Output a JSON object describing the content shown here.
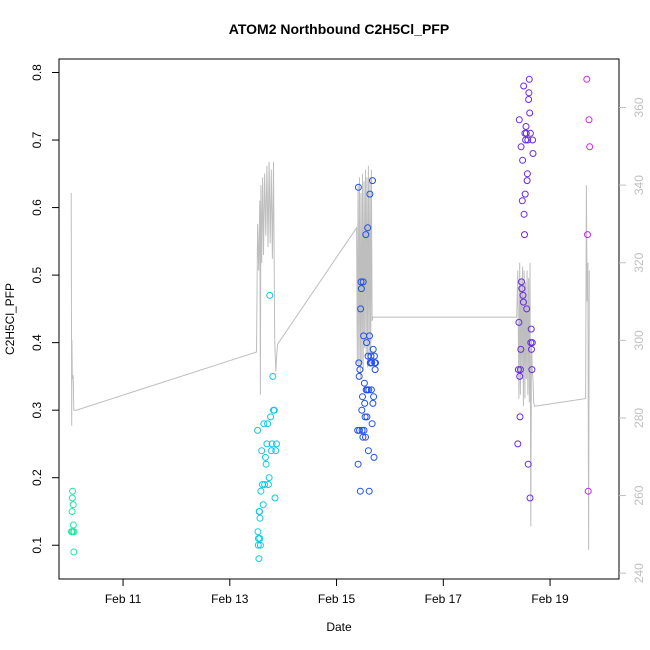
{
  "chart_data": {
    "type": "scatter",
    "title": "ATOM2 Northbound C2H5Cl_PFP",
    "xlabel": "Date",
    "ylabel": "C2H5Cl_PFP",
    "xlim": [
      "2016-02-09T19:12",
      "2016-02-20T07:00"
    ],
    "ylim": [
      0.05,
      0.82
    ],
    "x_ticks": [
      {
        "label": "Feb 11",
        "date": "2016-02-11"
      },
      {
        "label": "Feb 13",
        "date": "2016-02-13"
      },
      {
        "label": "Feb 15",
        "date": "2016-02-15"
      },
      {
        "label": "Feb 17",
        "date": "2016-02-17"
      },
      {
        "label": "Feb 19",
        "date": "2016-02-19"
      }
    ],
    "y_ticks": [
      "0.1",
      "0.2",
      "0.3",
      "0.4",
      "0.5",
      "0.6",
      "0.7",
      "0.8"
    ],
    "y2_ticks": [
      "240",
      "260",
      "280",
      "300",
      "320",
      "340",
      "360"
    ],
    "y2lim": [
      238.5,
      372.5
    ],
    "grid": false,
    "legend": "none",
    "colors": {
      "flight1": "#1ee7a0",
      "flight2": "#10c8e6",
      "flight3": "#2050e8",
      "flight4": "#6a2ae6",
      "flight5": "#c02ae6",
      "line": "#bebebe"
    },
    "series": [
      {
        "color_key": "flight1",
        "x": [
          "2016-02-10T00:48",
          "2016-02-10T00:55",
          "2016-02-10T01:05",
          "2016-02-10T01:12",
          "2016-02-10T01:20",
          "2016-02-10T01:25",
          "2016-02-10T01:35",
          "2016-02-10T01:40",
          "2016-02-10T01:50",
          "2016-02-10T02:00"
        ],
        "y": [
          0.12,
          0.12,
          0.15,
          0.17,
          0.18,
          0.12,
          0.16,
          0.13,
          0.09,
          0.12
        ]
      },
      {
        "color_key": "flight2",
        "x": [
          "2016-02-13T12:30",
          "2016-02-13T12:40",
          "2016-02-13T12:48",
          "2016-02-13T12:55",
          "2016-02-13T13:05",
          "2016-02-13T13:12",
          "2016-02-13T13:20",
          "2016-02-13T13:28",
          "2016-02-13T13:35",
          "2016-02-13T13:45",
          "2016-02-13T14:00",
          "2016-02-13T14:20",
          "2016-02-13T14:40",
          "2016-02-13T15:00",
          "2016-02-13T15:20",
          "2016-02-13T15:40",
          "2016-02-13T16:00",
          "2016-02-13T16:20",
          "2016-02-13T16:40",
          "2016-02-13T17:00",
          "2016-02-13T17:20",
          "2016-02-13T17:40",
          "2016-02-13T18:00",
          "2016-02-13T18:20",
          "2016-02-13T18:40",
          "2016-02-13T19:00",
          "2016-02-13T19:20",
          "2016-02-13T19:40",
          "2016-02-13T20:00",
          "2016-02-13T20:20",
          "2016-02-13T20:40",
          "2016-02-13T21:00"
        ],
        "y": [
          0.27,
          0.12,
          0.1,
          0.11,
          0.08,
          0.15,
          0.15,
          0.11,
          0.14,
          0.1,
          0.18,
          0.24,
          0.19,
          0.16,
          0.28,
          0.19,
          0.23,
          0.22,
          0.25,
          0.28,
          0.19,
          0.2,
          0.47,
          0.29,
          0.24,
          0.25,
          0.35,
          0.3,
          0.3,
          0.17,
          0.24,
          0.25
        ]
      },
      {
        "color_key": "flight3",
        "x": [
          "2016-02-15T09:30",
          "2016-02-15T09:40",
          "2016-02-15T09:50",
          "2016-02-15T10:00",
          "2016-02-15T10:10",
          "2016-02-15T10:20",
          "2016-02-15T10:30",
          "2016-02-15T10:40",
          "2016-02-15T10:50",
          "2016-02-15T11:00",
          "2016-02-15T11:10",
          "2016-02-15T11:20",
          "2016-02-15T11:30",
          "2016-02-15T11:40",
          "2016-02-15T11:50",
          "2016-02-15T12:00",
          "2016-02-15T12:10",
          "2016-02-15T12:20",
          "2016-02-15T12:30",
          "2016-02-15T12:40",
          "2016-02-15T12:50",
          "2016-02-15T13:00",
          "2016-02-15T13:10",
          "2016-02-15T13:20",
          "2016-02-15T13:30",
          "2016-02-15T13:40",
          "2016-02-15T13:50",
          "2016-02-15T14:00",
          "2016-02-15T14:10",
          "2016-02-15T14:20",
          "2016-02-15T14:30",
          "2016-02-15T14:40",
          "2016-02-15T14:50",
          "2016-02-15T15:00",
          "2016-02-15T15:10",
          "2016-02-15T15:20",
          "2016-02-15T15:30",
          "2016-02-15T15:40",
          "2016-02-15T15:50",
          "2016-02-15T16:00",
          "2016-02-15T16:10",
          "2016-02-15T16:20",
          "2016-02-15T16:30",
          "2016-02-15T16:40",
          "2016-02-15T16:50",
          "2016-02-15T17:00",
          "2016-02-15T17:10",
          "2016-02-15T17:20",
          "2016-02-15T17:30"
        ],
        "y": [
          0.27,
          0.22,
          0.63,
          0.37,
          0.35,
          0.27,
          0.36,
          0.18,
          0.45,
          0.49,
          0.48,
          0.3,
          0.27,
          0.32,
          0.26,
          0.49,
          0.41,
          0.27,
          0.34,
          0.31,
          0.29,
          0.26,
          0.56,
          0.33,
          0.4,
          0.29,
          0.33,
          0.57,
          0.38,
          0.24,
          0.33,
          0.18,
          0.41,
          0.62,
          0.37,
          0.37,
          0.38,
          0.33,
          0.37,
          0.28,
          0.64,
          0.31,
          0.39,
          0.32,
          0.23,
          0.38,
          0.37,
          0.36,
          0.37
        ]
      },
      {
        "color_key": "flight4",
        "x": [
          "2016-02-18T09:30",
          "2016-02-18T09:45",
          "2016-02-18T10:00",
          "2016-02-18T10:10",
          "2016-02-18T10:20",
          "2016-02-18T10:30",
          "2016-02-18T10:40",
          "2016-02-18T10:50",
          "2016-02-18T11:00",
          "2016-02-18T11:10",
          "2016-02-18T11:20",
          "2016-02-18T11:30",
          "2016-02-18T11:40",
          "2016-02-18T11:50",
          "2016-02-18T12:00",
          "2016-02-18T12:10",
          "2016-02-18T12:20",
          "2016-02-18T12:30",
          "2016-02-18T12:40",
          "2016-02-18T12:50",
          "2016-02-18T13:00",
          "2016-02-18T13:10",
          "2016-02-18T13:20",
          "2016-02-18T13:30",
          "2016-02-18T13:40",
          "2016-02-18T13:50",
          "2016-02-18T14:00",
          "2016-02-18T14:10",
          "2016-02-18T14:20",
          "2016-02-18T14:30",
          "2016-02-18T14:40",
          "2016-02-18T14:50",
          "2016-02-18T15:00",
          "2016-02-18T15:10",
          "2016-02-18T15:20",
          "2016-02-18T15:30",
          "2016-02-18T15:40",
          "2016-02-18T15:50",
          "2016-02-18T16:00",
          "2016-02-18T16:10",
          "2016-02-18T16:20"
        ],
        "y": [
          0.25,
          0.36,
          0.43,
          0.73,
          0.35,
          0.29,
          0.36,
          0.39,
          0.69,
          0.49,
          0.48,
          0.61,
          0.67,
          0.47,
          0.46,
          0.78,
          0.59,
          0.56,
          0.71,
          0.62,
          0.7,
          0.72,
          0.71,
          0.45,
          0.64,
          0.65,
          0.7,
          0.22,
          0.76,
          0.77,
          0.79,
          0.74,
          0.17,
          0.71,
          0.4,
          0.42,
          0.39,
          0.36,
          0.4,
          0.7,
          0.68
        ]
      },
      {
        "color_key": "flight5",
        "x": [
          "2016-02-19T16:30",
          "2016-02-19T16:50",
          "2016-02-19T17:10",
          "2016-02-19T17:30",
          "2016-02-19T17:50"
        ],
        "y": [
          0.79,
          0.56,
          0.18,
          0.73,
          0.69
        ]
      }
    ],
    "line_series": {
      "axis": "right",
      "x": [
        "2016-02-10T00:40",
        "2016-02-10T00:55",
        "2016-02-10T01:00",
        "2016-02-10T01:10",
        "2016-02-10T01:20",
        "2016-02-10T01:35",
        "2016-02-10T01:50",
        "2016-02-10T03:00",
        "2016-02-13T12:00",
        "2016-02-13T12:30",
        "2016-02-13T13:00",
        "2016-02-13T13:30",
        "2016-02-13T13:45",
        "2016-02-13T14:00",
        "2016-02-13T14:20",
        "2016-02-13T14:45",
        "2016-02-13T15:10",
        "2016-02-13T15:40",
        "2016-02-13T16:10",
        "2016-02-13T16:40",
        "2016-02-13T17:10",
        "2016-02-13T17:40",
        "2016-02-13T18:10",
        "2016-02-13T18:40",
        "2016-02-13T19:10",
        "2016-02-13T19:40",
        "2016-02-13T20:10",
        "2016-02-13T20:40",
        "2016-02-13T21:10",
        "2016-02-13T21:30",
        "2016-02-15T09:00",
        "2016-02-15T09:20",
        "2016-02-15T09:40",
        "2016-02-15T10:00",
        "2016-02-15T10:20",
        "2016-02-15T10:40",
        "2016-02-15T11:00",
        "2016-02-15T11:20",
        "2016-02-15T11:40",
        "2016-02-15T12:00",
        "2016-02-15T12:20",
        "2016-02-15T12:40",
        "2016-02-15T13:00",
        "2016-02-15T13:20",
        "2016-02-15T13:40",
        "2016-02-15T14:00",
        "2016-02-15T14:20",
        "2016-02-15T14:40",
        "2016-02-15T15:00",
        "2016-02-15T15:20",
        "2016-02-15T15:40",
        "2016-02-15T16:00",
        "2016-02-15T16:20",
        "2016-02-15T16:40",
        "2016-02-15T17:00",
        "2016-02-15T17:20",
        "2016-02-15T17:40",
        "2016-02-15T18:00",
        "2016-02-18T09:00",
        "2016-02-18T09:30",
        "2016-02-18T10:00",
        "2016-02-18T10:20",
        "2016-02-18T10:40",
        "2016-02-18T11:00",
        "2016-02-18T11:20",
        "2016-02-18T11:40",
        "2016-02-18T12:00",
        "2016-02-18T12:20",
        "2016-02-18T12:40",
        "2016-02-18T13:00",
        "2016-02-18T13:20",
        "2016-02-18T13:40",
        "2016-02-18T14:00",
        "2016-02-18T14:20",
        "2016-02-18T14:40",
        "2016-02-18T15:00",
        "2016-02-18T15:20",
        "2016-02-18T15:40",
        "2016-02-18T16:00",
        "2016-02-18T16:20",
        "2016-02-18T16:40",
        "2016-02-18T17:00",
        "2016-02-19T16:00",
        "2016-02-19T16:20",
        "2016-02-19T16:40",
        "2016-02-19T17:00",
        "2016-02-19T17:20",
        "2016-02-19T17:40"
      ],
      "y": [
        338,
        278,
        300,
        291,
        290,
        291,
        282,
        282,
        297,
        330,
        318,
        336,
        286,
        340,
        320,
        342,
        322,
        343,
        327,
        345,
        324,
        346,
        325,
        344,
        321,
        346,
        300,
        292,
        297,
        299,
        329,
        294,
        340,
        293,
        342,
        290,
        338,
        294,
        343,
        292,
        341,
        298,
        344,
        296,
        342,
        293,
        345,
        296,
        342,
        294,
        344,
        305,
        306,
        306,
        306,
        306,
        306,
        306,
        306,
        318,
        285,
        320,
        286,
        316,
        290,
        319,
        283,
        318,
        285,
        315,
        290,
        318,
        286,
        316,
        284,
        320,
        252,
        300,
        292,
        290,
        284,
        283,
        285,
        340,
        310,
        320,
        246,
        318
      ]
    }
  }
}
